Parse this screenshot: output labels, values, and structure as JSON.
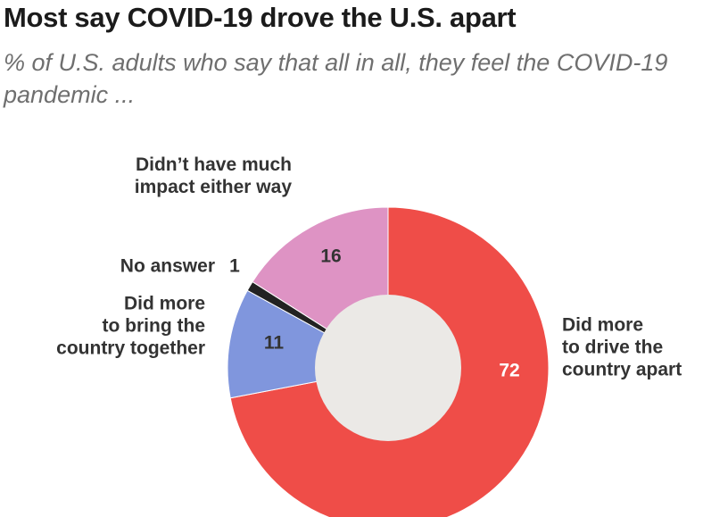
{
  "title": "Most say COVID-19 drove the U.S. apart",
  "subtitle": "% of U.S. adults who say that all in all, they feel the COVID-19 pandemic ...",
  "chart_data": {
    "type": "pie",
    "donut": true,
    "slices": [
      {
        "label": "Did more to drive the country apart",
        "label_lines": [
          "Did more",
          "to drive the",
          "country apart"
        ],
        "value": 72,
        "color": "#ef4d48",
        "value_color": "#ffffff"
      },
      {
        "label": "Did more to bring the country together",
        "label_lines": [
          "Did more",
          "to bring the",
          "country together"
        ],
        "value": 11,
        "color": "#8096dd",
        "value_color": "#333333"
      },
      {
        "label": "No answer",
        "label_lines": [
          "No answer"
        ],
        "value": 1,
        "color": "#222222",
        "value_color": "#333333"
      },
      {
        "label": "Didn't have much impact either way",
        "label_lines": [
          "Didn’t have much",
          "impact either way"
        ],
        "value": 16,
        "color": "#de93c4",
        "value_color": "#333333"
      }
    ],
    "hole_color": "#ebe9e6"
  }
}
